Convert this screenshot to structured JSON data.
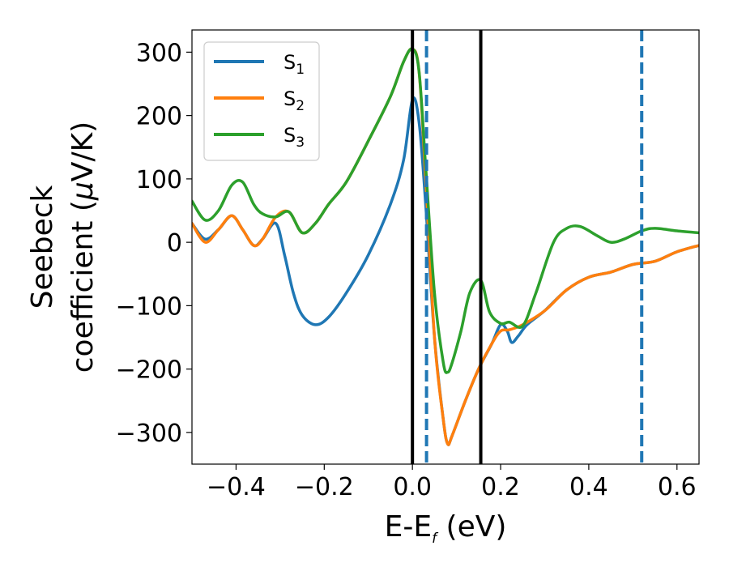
{
  "chart_data": {
    "type": "line",
    "xlabel": "E-E",
    "xlabel_sub": "f",
    "xlabel_unit": " (eV)",
    "ylabel_line1": "Seebeck",
    "ylabel_line2": "coefficient  (",
    "ylabel_mu": "μ",
    "ylabel_unit": "V/K)",
    "xlim": [
      -0.5,
      0.65
    ],
    "ylim": [
      -350,
      335
    ],
    "xticks": [
      -0.4,
      -0.2,
      0.0,
      0.2,
      0.4,
      0.6
    ],
    "xtick_labels": [
      "−0.4",
      "−0.2",
      "0.0",
      "0.2",
      "0.4",
      "0.6"
    ],
    "yticks": [
      300,
      200,
      100,
      0,
      -100,
      -200,
      -300
    ],
    "ytick_labels": [
      "300",
      "200",
      "100",
      "0",
      "−100",
      "−200",
      "−300"
    ],
    "grid": false,
    "legend_position": "top-left",
    "series": [
      {
        "name": "S",
        "name_sub": "1",
        "color": "#1f77b4",
        "points": [
          [
            -0.5,
            30
          ],
          [
            -0.47,
            5
          ],
          [
            -0.44,
            20
          ],
          [
            -0.41,
            42
          ],
          [
            -0.385,
            20
          ],
          [
            -0.36,
            -5
          ],
          [
            -0.34,
            5
          ],
          [
            -0.31,
            30
          ],
          [
            -0.29,
            -20
          ],
          [
            -0.27,
            -80
          ],
          [
            -0.25,
            -115
          ],
          [
            -0.22,
            -130
          ],
          [
            -0.19,
            -118
          ],
          [
            -0.15,
            -80
          ],
          [
            -0.1,
            -20
          ],
          [
            -0.05,
            60
          ],
          [
            -0.02,
            130
          ],
          [
            0.0,
            225
          ],
          [
            0.015,
            190
          ],
          [
            0.03,
            60
          ],
          [
            0.05,
            -150
          ],
          [
            0.07,
            -280
          ],
          [
            0.08,
            -318
          ],
          [
            0.09,
            -305
          ],
          [
            0.12,
            -250
          ],
          [
            0.15,
            -200
          ],
          [
            0.18,
            -160
          ],
          [
            0.2,
            -130
          ],
          [
            0.215,
            -140
          ],
          [
            0.225,
            -158
          ],
          [
            0.24,
            -148
          ],
          [
            0.26,
            -130
          ],
          [
            0.3,
            -108
          ],
          [
            0.35,
            -75
          ],
          [
            0.4,
            -55
          ],
          [
            0.45,
            -47
          ],
          [
            0.5,
            -35
          ],
          [
            0.55,
            -30
          ],
          [
            0.6,
            -15
          ],
          [
            0.65,
            -5
          ]
        ]
      },
      {
        "name": "S",
        "name_sub": "2",
        "color": "#ff7f0e",
        "points": [
          [
            -0.5,
            30
          ],
          [
            -0.47,
            0
          ],
          [
            -0.44,
            20
          ],
          [
            -0.41,
            42
          ],
          [
            -0.385,
            20
          ],
          [
            -0.36,
            -5
          ],
          [
            -0.34,
            5
          ],
          [
            -0.31,
            40
          ],
          [
            -0.28,
            48
          ],
          [
            -0.25,
            15
          ],
          [
            -0.22,
            30
          ],
          [
            -0.19,
            60
          ],
          [
            -0.15,
            95
          ],
          [
            -0.1,
            160
          ],
          [
            -0.05,
            230
          ],
          [
            -0.02,
            285
          ],
          [
            0.0,
            305
          ],
          [
            0.015,
            270
          ],
          [
            0.03,
            100
          ],
          [
            0.05,
            -150
          ],
          [
            0.07,
            -280
          ],
          [
            0.08,
            -318
          ],
          [
            0.09,
            -305
          ],
          [
            0.12,
            -250
          ],
          [
            0.15,
            -200
          ],
          [
            0.18,
            -160
          ],
          [
            0.2,
            -140
          ],
          [
            0.22,
            -138
          ],
          [
            0.25,
            -130
          ],
          [
            0.3,
            -108
          ],
          [
            0.35,
            -75
          ],
          [
            0.4,
            -55
          ],
          [
            0.45,
            -47
          ],
          [
            0.5,
            -35
          ],
          [
            0.55,
            -30
          ],
          [
            0.6,
            -15
          ],
          [
            0.65,
            -5
          ]
        ]
      },
      {
        "name": "S",
        "name_sub": "3",
        "color": "#2ca02c",
        "points": [
          [
            -0.5,
            65
          ],
          [
            -0.47,
            35
          ],
          [
            -0.44,
            50
          ],
          [
            -0.41,
            90
          ],
          [
            -0.385,
            95
          ],
          [
            -0.36,
            60
          ],
          [
            -0.34,
            45
          ],
          [
            -0.31,
            40
          ],
          [
            -0.28,
            48
          ],
          [
            -0.25,
            15
          ],
          [
            -0.22,
            30
          ],
          [
            -0.19,
            60
          ],
          [
            -0.15,
            95
          ],
          [
            -0.1,
            160
          ],
          [
            -0.05,
            230
          ],
          [
            -0.02,
            285
          ],
          [
            0.0,
            305
          ],
          [
            0.015,
            270
          ],
          [
            0.03,
            120
          ],
          [
            0.05,
            -80
          ],
          [
            0.07,
            -190
          ],
          [
            0.08,
            -205
          ],
          [
            0.09,
            -190
          ],
          [
            0.11,
            -140
          ],
          [
            0.13,
            -80
          ],
          [
            0.155,
            -60
          ],
          [
            0.175,
            -110
          ],
          [
            0.2,
            -128
          ],
          [
            0.22,
            -126
          ],
          [
            0.25,
            -132
          ],
          [
            0.28,
            -80
          ],
          [
            0.32,
            0
          ],
          [
            0.35,
            22
          ],
          [
            0.38,
            25
          ],
          [
            0.42,
            10
          ],
          [
            0.45,
            0
          ],
          [
            0.48,
            5
          ],
          [
            0.52,
            18
          ],
          [
            0.55,
            22
          ],
          [
            0.6,
            18
          ],
          [
            0.65,
            15
          ]
        ]
      }
    ],
    "vlines": [
      {
        "x": 0.0,
        "color": "#000000",
        "style": "solid"
      },
      {
        "x": 0.155,
        "color": "#000000",
        "style": "solid"
      },
      {
        "x": 0.032,
        "color": "#1f77b4",
        "style": "dashed"
      },
      {
        "x": 0.52,
        "color": "#1f77b4",
        "style": "dashed"
      }
    ]
  }
}
